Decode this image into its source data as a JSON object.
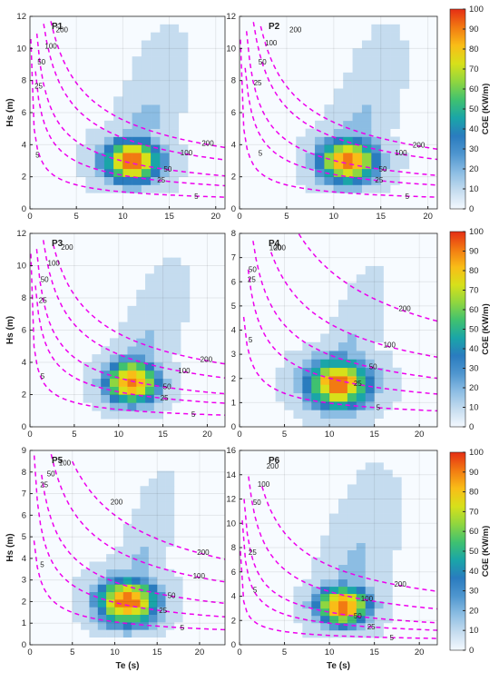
{
  "figure": {
    "xlabel": "Te (s)",
    "ylabel": "Hs (m)",
    "colorbar_label": "CGE (KW/m)",
    "colorbar_ticks": [
      "0",
      "10",
      "20",
      "30",
      "40",
      "50",
      "60",
      "70",
      "80",
      "90",
      "100"
    ],
    "colormap": [
      "#f4f9ff",
      "#c5dcef",
      "#8cbde3",
      "#4f96cf",
      "#2a7cbf",
      "#1aa5a8",
      "#3fc170",
      "#8fd640",
      "#d7e01a",
      "#f9bd17",
      "#f27a12",
      "#e52e14"
    ]
  },
  "chart_data": [
    {
      "type": "heatmap",
      "panel": "P1",
      "xlim": [
        0,
        21
      ],
      "ylim": [
        0,
        12
      ],
      "xticks": [
        0,
        5,
        10,
        15,
        20
      ],
      "yticks": [
        0,
        2,
        4,
        6,
        8,
        10,
        12
      ],
      "bin_x": 1,
      "bin_y": 0.5,
      "peak": {
        "te": 11,
        "hs": 3.0
      },
      "spread": {
        "te": 2.3,
        "hs": 1.0
      },
      "tail": {
        "te": 16.5,
        "hs": 11.5
      },
      "curves": [
        {
          "label": "200",
          "value": 200,
          "x_start": 1.6,
          "label_at": [
            2.8,
            11.0
          ],
          "label_end_at": [
            18.3,
            4.1
          ]
        },
        {
          "label": "100",
          "value": 100,
          "x_start": 0.8,
          "label_at": [
            1.6,
            10.0
          ],
          "label_end_at": [
            16.0,
            3.5
          ]
        },
        {
          "label": "50",
          "value": 50,
          "x_start": 0.4,
          "label_at": [
            0.8,
            9.0
          ],
          "label_end_at": [
            14.2,
            2.5
          ]
        },
        {
          "label": "25",
          "value": 25,
          "x_start": 0.25,
          "label_at": [
            0.5,
            7.5
          ],
          "label_end_at": [
            13.5,
            1.8
          ]
        },
        {
          "label": "5",
          "value": 5,
          "x_start": 0.1,
          "label_at": [
            0.6,
            3.2
          ],
          "label_end_at": [
            17.5,
            0.8
          ]
        }
      ]
    },
    {
      "type": "heatmap",
      "panel": "P2",
      "xlim": [
        0,
        21
      ],
      "ylim": [
        0,
        12
      ],
      "xticks": [
        0,
        5,
        10,
        15,
        20
      ],
      "yticks": [
        0,
        2,
        4,
        6,
        8,
        10,
        12
      ],
      "bin_x": 1,
      "bin_y": 0.5,
      "peak": {
        "te": 11.5,
        "hs": 3.0
      },
      "spread": {
        "te": 2.3,
        "hs": 1.0
      },
      "tail": {
        "te": 17,
        "hs": 11.5
      },
      "curves": [
        {
          "label": "200",
          "value": 200,
          "x_start": 1.6,
          "label_at": [
            5.3,
            11.0
          ],
          "label_end_at": [
            18.2,
            4.0
          ]
        },
        {
          "label": "100",
          "value": 100,
          "x_start": 0.8,
          "label_at": [
            2.7,
            10.2
          ],
          "label_end_at": [
            16.3,
            3.5
          ]
        },
        {
          "label": "50",
          "value": 50,
          "x_start": 0.4,
          "label_at": [
            2.0,
            9.0
          ],
          "label_end_at": [
            14.6,
            2.5
          ]
        },
        {
          "label": "25",
          "value": 25,
          "x_start": 0.25,
          "label_at": [
            1.5,
            7.7
          ],
          "label_end_at": [
            14.2,
            1.8
          ]
        },
        {
          "label": "5",
          "value": 5,
          "x_start": 0.1,
          "label_at": [
            2.0,
            3.3
          ],
          "label_end_at": [
            17.4,
            0.8
          ]
        }
      ]
    },
    {
      "type": "heatmap",
      "panel": "P3",
      "xlim": [
        0,
        22
      ],
      "ylim": [
        0,
        12
      ],
      "xticks": [
        0,
        5,
        10,
        15,
        20
      ],
      "yticks": [
        0,
        2,
        4,
        6,
        8,
        10,
        12
      ],
      "bin_x": 1,
      "bin_y": 0.5,
      "peak": {
        "te": 11.5,
        "hs": 2.8
      },
      "spread": {
        "te": 2.2,
        "hs": 1.0
      },
      "tail": {
        "te": 17.5,
        "hs": 10.5
      },
      "curves": [
        {
          "label": "200",
          "value": 200,
          "x_start": 1.6,
          "label_at": [
            3.5,
            11.0
          ],
          "label_end_at": [
            19.0,
            4.2
          ]
        },
        {
          "label": "100",
          "value": 100,
          "x_start": 0.8,
          "label_at": [
            2.0,
            10.0
          ],
          "label_end_at": [
            16.5,
            3.5
          ]
        },
        {
          "label": "50",
          "value": 50,
          "x_start": 0.4,
          "label_at": [
            1.2,
            9.0
          ],
          "label_end_at": [
            14.8,
            2.5
          ]
        },
        {
          "label": "25",
          "value": 25,
          "x_start": 0.25,
          "label_at": [
            1.0,
            7.7
          ],
          "label_end_at": [
            14.5,
            1.8
          ]
        },
        {
          "label": "5",
          "value": 5,
          "x_start": 0.1,
          "label_at": [
            1.2,
            3.0
          ],
          "label_end_at": [
            18.0,
            0.8
          ]
        }
      ]
    },
    {
      "type": "heatmap",
      "panel": "P4",
      "xlim": [
        0,
        22
      ],
      "ylim": [
        0,
        8
      ],
      "xticks": [
        0,
        5,
        10,
        15,
        20
      ],
      "yticks": [
        0,
        1,
        2,
        3,
        4,
        5,
        6,
        7,
        8
      ],
      "bin_x": 1,
      "bin_y": 0.35,
      "peak": {
        "te": 11,
        "hs": 1.8
      },
      "spread": {
        "te": 2.6,
        "hs": 0.75
      },
      "tail": {
        "te": 16,
        "hs": 6.5
      },
      "curves": [
        {
          "label": "200",
          "value": 200,
          "x_start": 5.5,
          "label_at": [
            3.8,
            7.3
          ],
          "label_end_at": [
            17.5,
            4.9
          ]
        },
        {
          "label": "100",
          "value": 100,
          "x_start": 3.5,
          "label_at": [
            3.3,
            7.3
          ],
          "label_end_at": [
            15.8,
            3.4
          ]
        },
        {
          "label": "50",
          "value": 50,
          "x_start": 1.5,
          "label_at": [
            1.0,
            6.4
          ],
          "label_end_at": [
            14.2,
            2.5
          ]
        },
        {
          "label": "25",
          "value": 25,
          "x_start": 0.6,
          "label_at": [
            0.9,
            6.0
          ],
          "label_end_at": [
            12.5,
            1.8
          ]
        },
        {
          "label": "5",
          "value": 5,
          "x_start": 0.1,
          "label_at": [
            1.0,
            3.5
          ],
          "label_end_at": [
            15.0,
            0.8
          ]
        }
      ]
    },
    {
      "type": "heatmap",
      "panel": "P5",
      "xlim": [
        0,
        23
      ],
      "ylim": [
        0,
        9
      ],
      "xticks": [
        0,
        5,
        10,
        15,
        20
      ],
      "yticks": [
        0,
        1,
        2,
        3,
        4,
        5,
        6,
        7,
        8,
        9
      ],
      "bin_x": 1,
      "bin_y": 0.35,
      "peak": {
        "te": 11.5,
        "hs": 2.0
      },
      "spread": {
        "te": 2.6,
        "hs": 0.8
      },
      "tail": {
        "te": 17,
        "hs": 8.0
      },
      "curves": [
        {
          "label": "200",
          "value": 200,
          "x_start": 5.0,
          "label_at": [
            9.5,
            6.5
          ],
          "label_end_at": [
            19.5,
            4.3
          ]
        },
        {
          "label": "100",
          "value": 100,
          "x_start": 2.5,
          "label_at": [
            3.4,
            8.3
          ],
          "label_end_at": [
            19.0,
            3.2
          ]
        },
        {
          "label": "50",
          "value": 50,
          "x_start": 1.0,
          "label_at": [
            2.0,
            7.8
          ],
          "label_end_at": [
            16.0,
            2.3
          ]
        },
        {
          "label": "25",
          "value": 25,
          "x_start": 0.5,
          "label_at": [
            1.2,
            7.3
          ],
          "label_end_at": [
            15.0,
            1.6
          ]
        },
        {
          "label": "5",
          "value": 5,
          "x_start": 0.1,
          "label_at": [
            1.2,
            3.6
          ],
          "label_end_at": [
            17.5,
            0.8
          ]
        }
      ]
    },
    {
      "type": "heatmap",
      "panel": "P6",
      "xlim": [
        0,
        22
      ],
      "ylim": [
        0,
        16
      ],
      "xticks": [
        0,
        5,
        10,
        15,
        20
      ],
      "yticks": [
        0,
        2,
        4,
        6,
        8,
        10,
        12,
        14,
        16
      ],
      "bin_x": 1,
      "bin_y": 0.6,
      "peak": {
        "te": 11.5,
        "hs": 3.2
      },
      "spread": {
        "te": 2.2,
        "hs": 1.2
      },
      "tail": {
        "te": 16.5,
        "hs": 15.0
      },
      "curves": [
        {
          "label": "200",
          "value": 200,
          "x_start": 2.5,
          "label_at": [
            3.0,
            14.5
          ],
          "label_end_at": [
            17.0,
            5.0
          ]
        },
        {
          "label": "100",
          "value": 100,
          "x_start": 1.0,
          "label_at": [
            2.0,
            13.0
          ],
          "label_end_at": [
            13.3,
            3.8
          ]
        },
        {
          "label": "50",
          "value": 50,
          "x_start": 0.5,
          "label_at": [
            1.5,
            11.5
          ],
          "label_end_at": [
            12.5,
            2.4
          ]
        },
        {
          "label": "25",
          "value": 25,
          "x_start": 0.3,
          "label_at": [
            1.0,
            7.4
          ],
          "label_end_at": [
            14.0,
            1.5
          ]
        },
        {
          "label": "5",
          "value": 5,
          "x_start": 0.1,
          "label_at": [
            1.5,
            4.3
          ],
          "label_end_at": [
            16.5,
            0.6
          ]
        }
      ]
    }
  ]
}
